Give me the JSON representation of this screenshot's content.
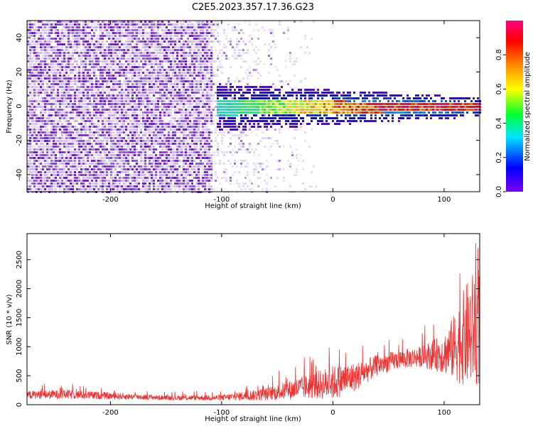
{
  "title": "C2E5.2023.357.17.36.G23",
  "chart_data": [
    {
      "type": "heatmap",
      "xlabel": "Height of straight line (km)",
      "ylabel": "Frequency (Hz)",
      "xlim": [
        -275,
        132
      ],
      "ylim": [
        -50,
        50
      ],
      "xticks": [
        -200,
        -100,
        0,
        100
      ],
      "yticks": [
        -40,
        -20,
        0,
        20,
        40
      ],
      "colorbar": {
        "label": "Normalized spectral amplitude",
        "range": [
          0,
          1
        ],
        "ticks": [
          "0.0",
          "0.2",
          "0.4",
          "0.6",
          "0.8"
        ],
        "colormap": [
          "#7b00ff",
          "#0000ff",
          "#00e5ff",
          "#00ff30",
          "#ffff00",
          "#ff8000",
          "#ff0000",
          "#ff0080"
        ]
      },
      "features": [
        {
          "name": "noise",
          "x_range": [
            -275,
            -110
          ],
          "freq_range": [
            -50,
            50
          ],
          "amplitude": 0.05
        },
        {
          "name": "sparse-noise",
          "x_range": [
            -110,
            -15
          ],
          "freq_range": [
            -50,
            50
          ],
          "amplitude": 0.02
        },
        {
          "name": "signal-band",
          "x_range": [
            -105,
            132
          ],
          "center_hz": 0,
          "half_width_hz": [
            5,
            2
          ],
          "amplitude_start": 0.35,
          "amplitude_end": 0.95
        }
      ]
    },
    {
      "type": "line",
      "xlabel": "Height of straight line (km)",
      "ylabel": "SNR (10 * v/v)",
      "xlim": [
        -275,
        132
      ],
      "ylim": [
        0,
        2950
      ],
      "xticks": [
        -200,
        -100,
        0,
        100
      ],
      "yticks": [
        0,
        500,
        1000,
        1500,
        2000,
        2500
      ],
      "series": [
        {
          "color": "#ee3333",
          "envelope": {
            "x": [
              -275,
              -240,
              -200,
              -150,
              -100,
              -60,
              -20,
              0,
              20,
              40,
              60,
              80,
              100,
              110,
              120,
              132
            ],
            "mean": [
              170,
              180,
              150,
              120,
              120,
              180,
              320,
              380,
              480,
              680,
              780,
              830,
              880,
              1000,
              1200,
              1400
            ],
            "spread": [
              70,
              80,
              60,
              40,
              50,
              110,
              220,
              300,
              250,
              180,
              160,
              180,
              350,
              600,
              900,
              1100
            ]
          }
        }
      ]
    }
  ]
}
